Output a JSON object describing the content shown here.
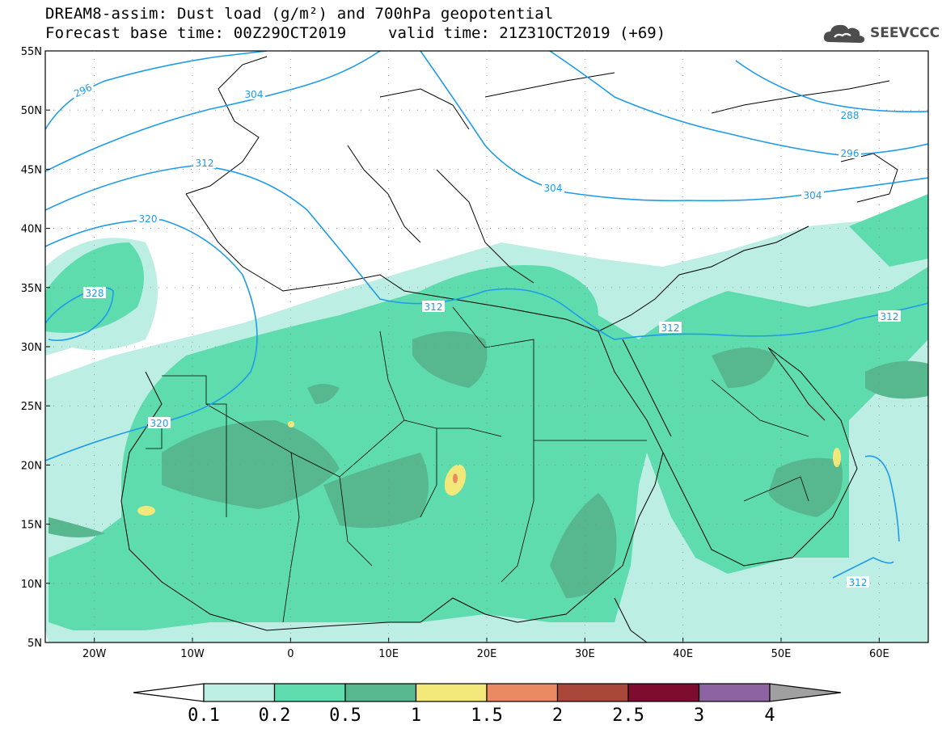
{
  "header": {
    "title_line1": "DREAM8-assim: Dust load (g/m²) and 700hPa geopotential",
    "title_line2": "Forecast base time: 00Z29OCT2019",
    "valid_time": "valid time: 21Z31OCT2019 (+69)",
    "logo_text": "SEEVCCC",
    "logo_icon": "cloud-logo-icon"
  },
  "map": {
    "lat_labels": [
      "55N",
      "50N",
      "45N",
      "40N",
      "35N",
      "30N",
      "25N",
      "20N",
      "15N",
      "10N",
      "5N"
    ],
    "lon_labels": [
      "20W",
      "10W",
      "0",
      "10E",
      "20E",
      "30E",
      "40E",
      "50E",
      "60E"
    ],
    "lat_range": [
      5,
      55
    ],
    "lon_range": [
      -25,
      65
    ],
    "contour_color": "#1e9be8",
    "contour_labels": [
      "296",
      "304",
      "312",
      "320",
      "328",
      "312",
      "304",
      "296",
      "288",
      "304",
      "312",
      "312",
      "320",
      "312"
    ]
  },
  "colorbar": {
    "labels": [
      "0.1",
      "0.2",
      "0.5",
      "1",
      "1.5",
      "2",
      "2.5",
      "3",
      "4"
    ],
    "colors": [
      "#ffffff",
      "#bdeee4",
      "#5fdcae",
      "#57b88f",
      "#f2e87a",
      "#e98a62",
      "#a9473b",
      "#7d0c2f",
      "#8d64a1",
      "#a0a0a0"
    ]
  }
}
